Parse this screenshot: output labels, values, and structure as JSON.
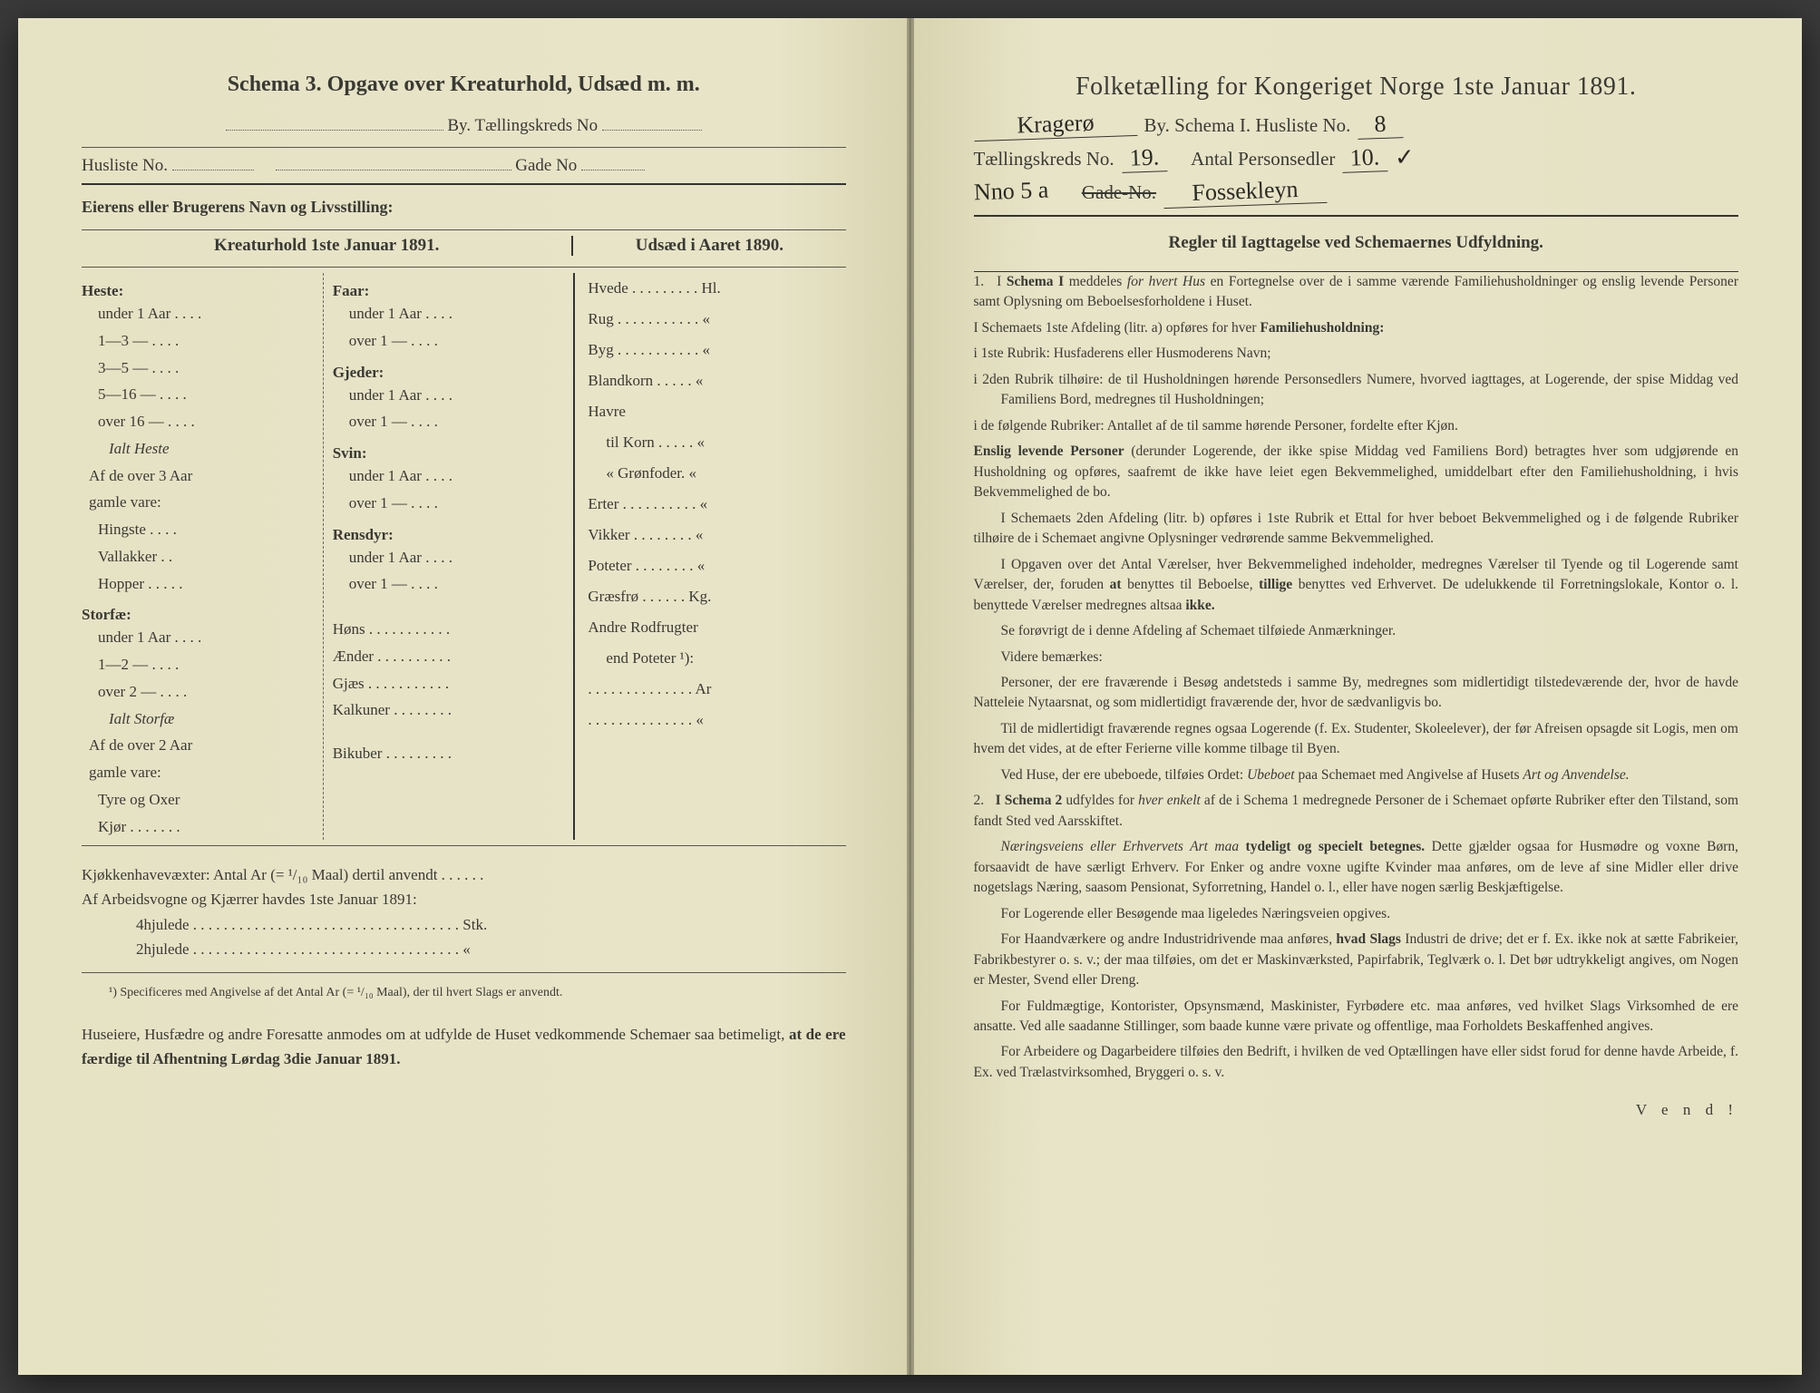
{
  "colors": {
    "paper": "#e8e4c8",
    "paper_shadow": "#d8d4b0",
    "ink": "#3a3a35",
    "background": "#3a3a3a"
  },
  "left": {
    "title": "Schema 3.   Opgave over Kreaturhold, Udsæd m. m.",
    "byLabel": "By.  Tællingskreds No",
    "huslisteLabel": "Husliste No.",
    "gadeLabel": "Gade No",
    "eierLine": "Eierens eller Brugerens Navn og Livsstilling:",
    "header_left": "Kreaturhold 1ste Januar 1891.",
    "header_right": "Udsæd i Aaret 1890.",
    "animals_col1": {
      "heste": {
        "head": "Heste:",
        "lines": [
          "under 1 Aar . . . .",
          "1—3  —  . . . .",
          "3—5  —  . . . .",
          "5—16  —  . . . .",
          "over 16  —  . . . ."
        ],
        "subtotal": "Ialt Heste",
        "noteHead": "Af de over 3 Aar",
        "noteHead2": "gamle vare:",
        "noteLines": [
          "Hingste . . . .",
          "Vallakker . .",
          "Hopper . . . . ."
        ]
      },
      "storfae": {
        "head": "Storfæ:",
        "lines": [
          "under 1 Aar . . . .",
          "1—2  —  . . . .",
          "over 2  —  . . . ."
        ],
        "subtotal": "Ialt Storfæ",
        "noteHead": "Af de over 2 Aar",
        "noteHead2": "gamle vare:",
        "noteLines": [
          "Tyre og Oxer",
          "Kjør . . . . . . ."
        ]
      }
    },
    "animals_col2": {
      "faar": {
        "head": "Faar:",
        "lines": [
          "under 1 Aar . . . .",
          "over 1  —  . . . ."
        ]
      },
      "gjeder": {
        "head": "Gjeder:",
        "lines": [
          "under 1 Aar . . . .",
          "over 1  —  . . . ."
        ]
      },
      "svin": {
        "head": "Svin:",
        "lines": [
          "under 1 Aar . . . .",
          "over 1  —  . . . ."
        ]
      },
      "rensdyr": {
        "head": "Rensdyr:",
        "lines": [
          "under 1 Aar . . . .",
          "over 1  —  . . . ."
        ]
      },
      "others": [
        "Høns . . . . . . . . . . .",
        "Ænder . . . . . . . . . .",
        "Gjæs . . . . . . . . . . .",
        "Kalkuner . . . . . . . .",
        "Bikuber . . . . . . . . ."
      ]
    },
    "seeds": [
      "Hvede . . . . . . . . . Hl.",
      "Rug . . . . . . . . . . .  «",
      "Byg . . . . . . . . . . .  «",
      "Blandkorn . . . . .  «",
      "Havre",
      "   til Korn . . . . .  «",
      "   « Grønfoder.  «",
      "Erter . . . . . . . . . .  «",
      "Vikker . . . . . . . .  «",
      "Poteter . . . . . . . .  «",
      "Græsfrø . . . . . . Kg.",
      "Andre Rodfrugter",
      "   end Poteter ¹):",
      ". . . . . . . . . . . . . . Ar",
      ". . . . . . . . . . . . . .  «"
    ],
    "kjokken": "Kjøkkenhavevæxter:  Antal Ar (= ¹/₁₀ Maal) dertil anvendt . . . . . .",
    "arbeid_head": "Af Arbeidsvogne og Kjærrer havdes 1ste Januar 1891:",
    "arbeid_lines": [
      "4hjulede . . . . . . . . . . . . . . . . . . . . . . . . . . . . . . . . . . . Stk.",
      "2hjulede . . . . . . . . . . . . . . . . . . . . . . . . . . . . . . . . . . .  «"
    ],
    "footnote": "¹) Specificeres med Angivelse af det Antal Ar (= ¹/₁₀ Maal), der til hvert Slags er anvendt.",
    "closing": "Huseiere, Husfædre og andre Foresatte anmodes om at udfylde de Huset vedkommende Schemaer saa betimeligt, at de ere færdige til Afhentning Lørdag 3die Januar 1891."
  },
  "right": {
    "title": "Folketælling for Kongeriget Norge 1ste Januar 1891.",
    "line2": {
      "city_hand": "Kragerø",
      "byLabel": "By.   Schema I.   Husliste No.",
      "husliste_hand": "8"
    },
    "line3": {
      "kredsLabel": "Tællingskreds No.",
      "kreds_hand": "19.",
      "personLabel": "Antal Personsedler",
      "person_hand": "10."
    },
    "line4": {
      "nno_hand": "Nno   5 a",
      "gadeLabel": "Gade-No.",
      "gade_hand": "Fossekleyn"
    },
    "reglerTitle": "Regler til Iagttagelse ved Schemaernes Udfyldning.",
    "paras": [
      {
        "t": "num",
        "n": "1.",
        "text": "I <b>Schema I</b> meddeles <i>for hvert Hus</i> en Fortegnelse over de i samme værende Familiehusholdninger og enslig levende Personer samt Oplysning om Beboelsesforholdene i Huset."
      },
      {
        "t": "p",
        "text": "I Schemaets 1ste Afdeling (litr. a) opføres for hver <b>Familiehusholdning:</b>"
      },
      {
        "t": "hang",
        "text": "i 1ste Rubrik: Husfaderens eller Husmoderens Navn;"
      },
      {
        "t": "hang",
        "text": "i 2den Rubrik tilhøire: de til Husholdningen hørende Personsedlers Numere, hvorved iagttages, at Logerende, der spise Middag ved Familiens Bord, medregnes til Husholdningen;"
      },
      {
        "t": "hang",
        "text": "i de følgende Rubriker: Antallet af de til samme hørende Personer, fordelte efter Kjøn."
      },
      {
        "t": "p",
        "text": "<b>Enslig levende Personer</b> (derunder Logerende, der ikke spise Middag ved Familiens Bord) betragtes hver som udgjørende en Husholdning og opføres, saafremt de ikke have leiet egen Bekvemmelighed, umiddelbart efter den Familiehusholdning, i hvis Bekvemmelighed de bo."
      },
      {
        "t": "pi",
        "text": "I Schemaets 2den Afdeling (litr. b) opføres i 1ste Rubrik et Ettal for hver beboet Bekvemmelighed og i de følgende Rubriker tilhøire de i Schemaet angivne Oplysninger vedrørende samme Bekvemmelighed."
      },
      {
        "t": "pi",
        "text": "I Opgaven over det Antal Værelser, hver Bekvemmelighed indeholder, medregnes Værelser til Tyende og til Logerende samt Værelser, der, foruden <b>at</b> benyttes til Beboelse, <b>tillige</b> benyttes ved Erhvervet. De udelukkende til Forretningslokale, Kontor o. l. benyttede Værelser medregnes altsaa <b>ikke.</b>"
      },
      {
        "t": "pi",
        "text": "Se forøvrigt de i denne Afdeling af Schemaet tilføiede Anmærkninger."
      },
      {
        "t": "pi",
        "text": "Videre bemærkes:"
      },
      {
        "t": "pi",
        "text": "Personer, der ere fraværende i Besøg andetsteds i samme By, medregnes som midlertidigt tilstedeværende der, hvor de havde Natteleie Nytaarsnat, og som midlertidigt fraværende der, hvor de sædvanligvis bo."
      },
      {
        "t": "pi",
        "text": "Til de midlertidigt fraværende regnes ogsaa Logerende (f. Ex. Studenter, Skoleelever), der før Afreisen opsagde sit Logis, men om hvem det vides, at de efter Ferierne ville komme tilbage til Byen."
      },
      {
        "t": "pi",
        "text": "Ved Huse, der ere ubeboede, tilføies Ordet: <i>Ubeboet</i> paa Schemaet med Angivelse af Husets <i>Art og Anvendelse.</i>"
      },
      {
        "t": "num",
        "n": "2.",
        "text": "<b>I Schema 2</b> udfyldes for <i>hver enkelt</i> af de i Schema 1 medregnede Personer de i Schemaet opførte Rubriker efter den Tilstand, som fandt Sted ved Aarsskiftet."
      },
      {
        "t": "pi",
        "text": "<i>Næringsveiens eller Erhvervets Art maa</i> <b>tydeligt og specielt betegnes.</b> Dette gjælder ogsaa for Husmødre og voxne Børn, forsaavidt de have særligt Erhverv. For Enker og andre voxne ugifte Kvinder maa anføres, om de leve af sine Midler eller drive nogetslags Næring, saasom Pensionat, Syforretning, Handel o. l., eller have nogen særlig Beskjæftigelse."
      },
      {
        "t": "pi",
        "text": "For Logerende eller Besøgende maa ligeledes Næringsveien opgives."
      },
      {
        "t": "pi",
        "text": "For Haandværkere og andre Industridrivende maa anføres, <b>hvad Slags</b> Industri de drive; det er f. Ex. ikke nok at sætte Fabrikeier, Fabrikbestyrer o. s. v.; der maa tilføies, om det er Maskinværksted, Papirfabrik, Teglværk o. l. Det bør udtrykkeligt angives, om Nogen er Mester, Svend eller Dreng."
      },
      {
        "t": "pi",
        "text": "For Fuldmægtige, Kontorister, Opsynsmænd, Maskinister, Fyrbødere etc. maa anføres, ved hvilket Slags Virksomhed de ere ansatte. Ved alle saadanne Stillinger, som baade kunne være private og offentlige, maa Forholdets Beskaffenhed angives."
      },
      {
        "t": "pi",
        "text": "For Arbeidere og Dagarbeidere tilføies den Bedrift, i hvilken de ved Optællingen have eller sidst forud for denne havde Arbeide, f. Ex. ved Trælastvirksomhed, Bryggeri o. s. v."
      }
    ],
    "vend": "V e n d !"
  }
}
